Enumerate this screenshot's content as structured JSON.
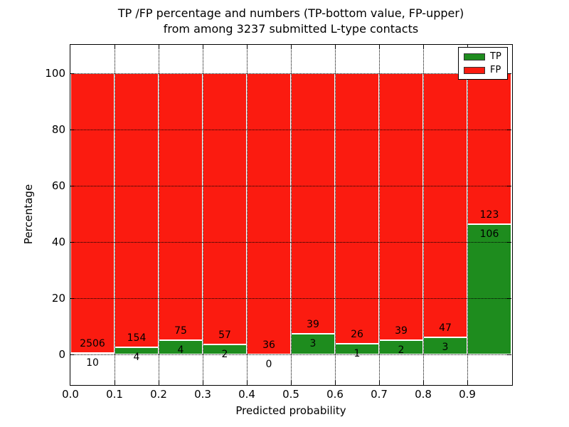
{
  "figure": {
    "title_line1": "TP /FP percentage and numbers (TP-bottom value, FP-upper)",
    "title_line2": "from among 3237 submitted L-type contacts"
  },
  "axes": {
    "xlabel": "Predicted probability",
    "ylabel": "Percentage",
    "ylim": [
      -11,
      110
    ],
    "xlim": [
      0.0,
      1.0
    ],
    "yticks": [
      0,
      20,
      40,
      60,
      80,
      100
    ],
    "xtick_labels": [
      "0.0",
      "0.1",
      "0.2",
      "0.3",
      "0.4",
      "0.5",
      "0.6",
      "0.7",
      "0.8",
      "0.9"
    ],
    "grid": "dotted black, on top of bars"
  },
  "legend": {
    "position": "upper right",
    "items": [
      {
        "label": "TP",
        "color": "#1e8c1e"
      },
      {
        "label": "FP",
        "color": "#fb1b10"
      }
    ]
  },
  "colors": {
    "tp_green": "#1e8c1e",
    "fp_red": "#fb1b10",
    "bar_edge": "#ffffff",
    "axis": "#000000",
    "background": "#ffffff"
  },
  "chart_data": {
    "type": "bar",
    "stacked": true,
    "normalized": "each 0.1-wide bin stacks TP% (bottom, green) + FP% (top, red) to 100%",
    "title": "TP /FP percentage and numbers (TP-bottom value, FP-upper) from among 3237 submitted L-type contacts",
    "xlabel": "Predicted probability",
    "ylabel": "Percentage",
    "total_contacts": 3237,
    "bin_width": 0.1,
    "series": [
      {
        "name": "TP",
        "color": "#1e8c1e",
        "position": "bottom"
      },
      {
        "name": "FP",
        "color": "#fb1b10",
        "position": "top"
      }
    ],
    "bins": [
      {
        "x0": 0.0,
        "x1": 0.1,
        "tp": 10,
        "fp": 2506
      },
      {
        "x0": 0.1,
        "x1": 0.2,
        "tp": 4,
        "fp": 154
      },
      {
        "x0": 0.2,
        "x1": 0.3,
        "tp": 4,
        "fp": 75
      },
      {
        "x0": 0.3,
        "x1": 0.4,
        "tp": 2,
        "fp": 57
      },
      {
        "x0": 0.4,
        "x1": 0.5,
        "tp": 0,
        "fp": 36
      },
      {
        "x0": 0.5,
        "x1": 0.6,
        "tp": 3,
        "fp": 39
      },
      {
        "x0": 0.6,
        "x1": 0.7,
        "tp": 1,
        "fp": 26
      },
      {
        "x0": 0.7,
        "x1": 0.8,
        "tp": 2,
        "fp": 39
      },
      {
        "x0": 0.8,
        "x1": 0.9,
        "tp": 3,
        "fp": 47
      },
      {
        "x0": 0.9,
        "x1": 1.0,
        "tp": 106,
        "fp": 123
      }
    ]
  }
}
